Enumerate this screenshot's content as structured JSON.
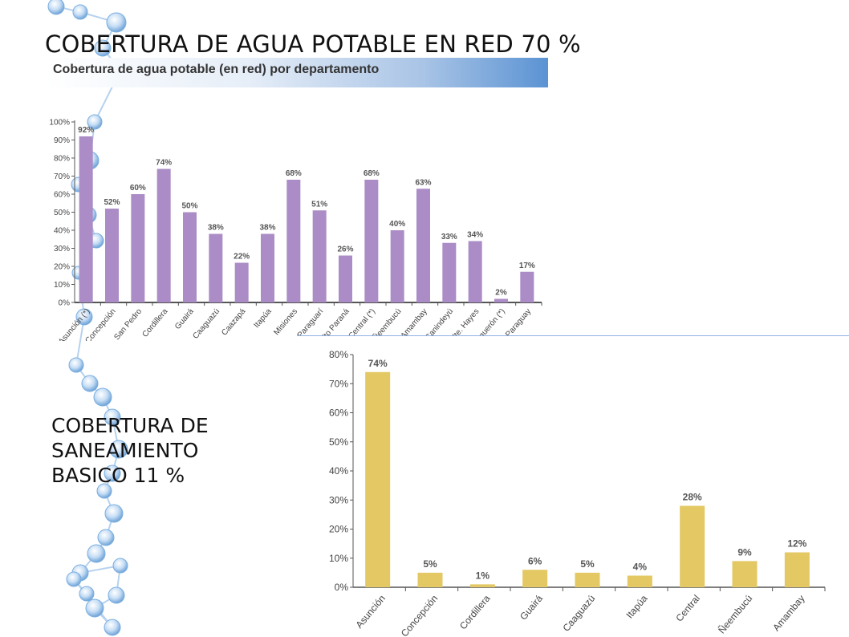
{
  "title": "COBERTURA DE AGUA POTABLE EN RED  70 %",
  "banner": "Cobertura de agua potable (en red) por departamento",
  "subtitle_lines": [
    "COBERTURA DE",
    "SANEAMIENTO",
    "BASICO  11  %"
  ],
  "colors": {
    "water_bar": "#ab8cc6",
    "sanitation_bar": "#e3c864",
    "banner_accent": "#5b93d3"
  },
  "chart_data": [
    {
      "type": "bar",
      "title": "Cobertura de agua potable (en red) por departamento",
      "categories": [
        "Asunción (*)",
        "Concepción",
        "San Pedro",
        "Cordillera",
        "Guairá",
        "Caaguazú",
        "Caazapá",
        "Itapúa",
        "Misiones",
        "Paraguarí",
        "Alto Paraná",
        "Central (*)",
        "Ñeembucú",
        "Amambay",
        "Canindeyú",
        "Pdte. Hayes",
        "Boquerón (*)",
        "Alto Paraguay"
      ],
      "values": [
        92,
        52,
        60,
        74,
        50,
        38,
        22,
        38,
        68,
        51,
        26,
        68,
        40,
        63,
        33,
        34,
        2,
        17
      ],
      "value_labels": [
        "92%",
        "52%",
        "60%",
        "74%",
        "50%",
        "38%",
        "22%",
        "38%",
        "68%",
        "51%",
        "26%",
        "68%",
        "40%",
        "63%",
        "33%",
        "34%",
        "2%",
        "17%"
      ],
      "ylim": [
        0,
        100
      ],
      "yticks": [
        "0%",
        "10%",
        "20%",
        "30%",
        "40%",
        "50%",
        "60%",
        "70%",
        "80%",
        "90%",
        "100%"
      ],
      "color": "#ab8cc6"
    },
    {
      "type": "bar",
      "categories": [
        "Asunción",
        "Concepción",
        "Cordillera",
        "Guairá",
        "Caaguazú",
        "Itapúa",
        "Central",
        "Ñeembucú",
        "Amambay"
      ],
      "values": [
        74,
        5,
        1,
        6,
        5,
        4,
        28,
        9,
        12
      ],
      "value_labels": [
        "74%",
        "5%",
        "1%",
        "6%",
        "5%",
        "4%",
        "28%",
        "9%",
        "12%"
      ],
      "ylim": [
        0,
        80
      ],
      "yticks": [
        "0%",
        "10%",
        "20%",
        "30%",
        "40%",
        "50%",
        "60%",
        "70%",
        "80%"
      ],
      "color": "#e3c864"
    }
  ]
}
